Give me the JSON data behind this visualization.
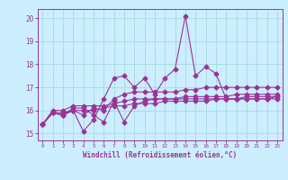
{
  "title": "",
  "xlabel": "Windchill (Refroidissement éolien,°C)",
  "ylabel": "",
  "xlim": [
    -0.5,
    23.5
  ],
  "ylim": [
    14.7,
    20.4
  ],
  "yticks": [
    15,
    16,
    17,
    18,
    19,
    20
  ],
  "xticks": [
    0,
    1,
    2,
    3,
    4,
    5,
    6,
    7,
    8,
    9,
    10,
    11,
    12,
    13,
    14,
    15,
    16,
    17,
    18,
    19,
    20,
    21,
    22,
    23
  ],
  "background_color": "#cceeff",
  "grid_color": "#aadddd",
  "line_color": "#993399",
  "lines": [
    {
      "x": [
        0,
        1,
        2,
        3,
        4,
        5,
        6,
        7,
        8,
        9,
        10,
        11,
        12,
        13,
        14,
        15,
        16,
        17,
        18,
        19,
        20,
        21,
        22,
        23
      ],
      "y": [
        15.4,
        15.9,
        15.8,
        16.0,
        15.1,
        15.6,
        16.5,
        17.4,
        17.5,
        17.0,
        17.4,
        16.7,
        17.4,
        17.8,
        20.1,
        17.5,
        17.9,
        17.6,
        16.5,
        16.5,
        16.6,
        16.6,
        16.6,
        16.6
      ],
      "marker": "D",
      "ms": 2.5
    },
    {
      "x": [
        0,
        1,
        2,
        3,
        4,
        5,
        6,
        7,
        8,
        9,
        10,
        11,
        12,
        13,
        14,
        15,
        16,
        17,
        18,
        19,
        20,
        21,
        22,
        23
      ],
      "y": [
        15.4,
        15.9,
        15.8,
        16.1,
        16.1,
        15.8,
        15.5,
        16.4,
        15.5,
        16.2,
        16.4,
        16.5,
        16.5,
        16.5,
        16.5,
        16.5,
        16.5,
        16.5,
        16.5,
        16.5,
        16.5,
        16.5,
        16.5,
        16.5
      ],
      "marker": "D",
      "ms": 2.5
    },
    {
      "x": [
        0,
        1,
        2,
        3,
        4,
        5,
        6,
        7,
        8,
        9,
        10,
        11,
        12,
        13,
        14,
        15,
        16,
        17,
        18,
        19,
        20,
        21,
        22,
        23
      ],
      "y": [
        15.4,
        15.9,
        15.8,
        16.0,
        15.8,
        16.1,
        16.0,
        16.5,
        16.7,
        16.8,
        16.8,
        16.8,
        16.8,
        16.8,
        16.9,
        16.9,
        17.0,
        17.0,
        17.0,
        17.0,
        17.0,
        17.0,
        17.0,
        17.0
      ],
      "marker": "D",
      "ms": 2.5
    },
    {
      "x": [
        0,
        1,
        2,
        3,
        4,
        5,
        6,
        7,
        8,
        9,
        10,
        11,
        12,
        13,
        14,
        15,
        16,
        17,
        18,
        19,
        20,
        21,
        22,
        23
      ],
      "y": [
        15.4,
        16.0,
        16.0,
        16.2,
        16.2,
        16.2,
        16.2,
        16.3,
        16.4,
        16.5,
        16.5,
        16.5,
        16.5,
        16.5,
        16.6,
        16.6,
        16.6,
        16.6,
        16.6,
        16.7,
        16.7,
        16.7,
        16.7,
        16.7
      ],
      "marker": "D",
      "ms": 2.5
    },
    {
      "x": [
        0,
        1,
        2,
        3,
        4,
        5,
        6,
        7,
        8,
        9,
        10,
        11,
        12,
        13,
        14,
        15,
        16,
        17,
        18,
        19,
        20,
        21,
        22,
        23
      ],
      "y": [
        15.4,
        15.9,
        15.9,
        16.0,
        16.0,
        16.0,
        16.1,
        16.2,
        16.2,
        16.3,
        16.3,
        16.3,
        16.4,
        16.4,
        16.4,
        16.4,
        16.4,
        16.5,
        16.5,
        16.5,
        16.5,
        16.5,
        16.5,
        16.6
      ],
      "marker": "D",
      "ms": 2.5
    }
  ]
}
